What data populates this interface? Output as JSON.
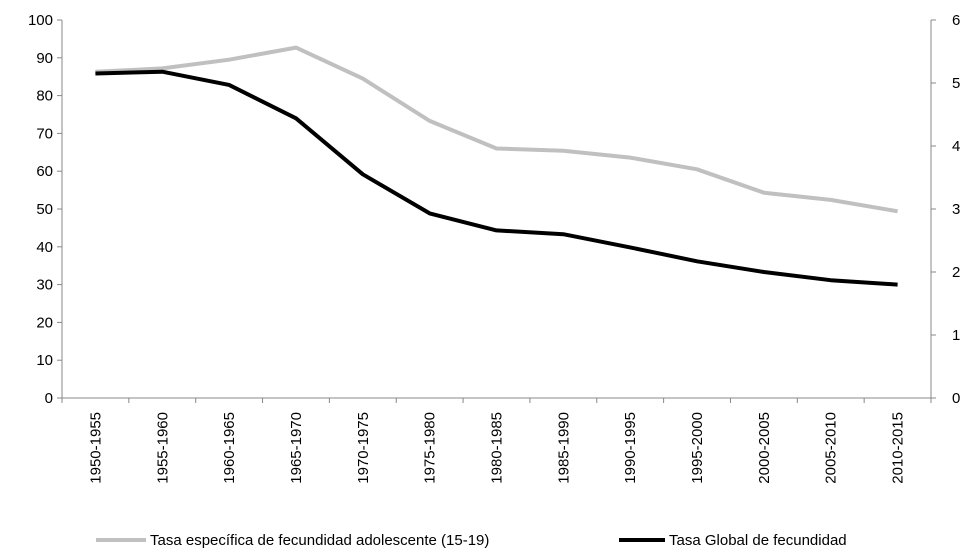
{
  "chart_data": {
    "type": "line",
    "categories": [
      "1950-1955",
      "1955-1960",
      "1960-1965",
      "1965-1970",
      "1970-1975",
      "1975-1980",
      "1980-1985",
      "1985-1990",
      "1990-1995",
      "1995-2000",
      "2000-2005",
      "2005-2010",
      "2010-2015"
    ],
    "series": [
      {
        "name": "Tasa específica de fecundidad adolescente (15-19)",
        "axis": "left",
        "color": "#c0c0c0",
        "values": [
          86.3,
          87.2,
          89.5,
          92.7,
          84.5,
          73.3,
          66.0,
          65.4,
          63.6,
          60.5,
          54.3,
          52.4,
          49.4
        ]
      },
      {
        "name": "Tasa Global de fecundidad",
        "axis": "right",
        "color": "#000000",
        "values": [
          5.15,
          5.18,
          4.97,
          4.44,
          3.55,
          2.93,
          2.66,
          2.6,
          2.39,
          2.17,
          2.0,
          1.87,
          1.8
        ]
      }
    ],
    "ylim_left": [
      0,
      100
    ],
    "yticks_left": [
      0,
      10,
      20,
      30,
      40,
      50,
      60,
      70,
      80,
      90,
      100
    ],
    "ylim_right": [
      0,
      6
    ],
    "yticks_right": [
      0,
      1,
      2,
      3,
      4,
      5,
      6
    ],
    "grid": false,
    "legend_position": "bottom",
    "title": "",
    "xlabel": "",
    "ylabel_left": "",
    "ylabel_right": ""
  }
}
